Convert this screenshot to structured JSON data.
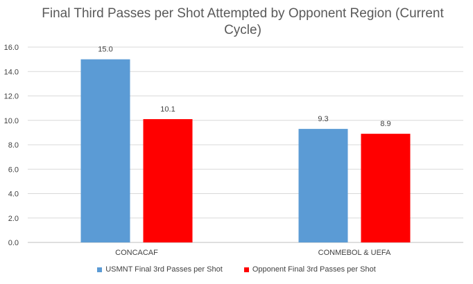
{
  "chart_data": {
    "type": "bar",
    "title": "Final Third Passes per Shot Attempted by Opponent Region (Current Cycle)",
    "categories": [
      "CONCACAF",
      "CONMEBOL & UEFA"
    ],
    "series": [
      {
        "name": "USMNT Final 3rd Passes per Shot",
        "color": "#5b9bd5",
        "values": [
          15.0,
          9.3
        ]
      },
      {
        "name": "Opponent Final 3rd Passes per Shot",
        "color": "#ff0000",
        "values": [
          10.1,
          8.9
        ]
      }
    ],
    "data_labels": [
      [
        "15.0",
        "9.3"
      ],
      [
        "10.1",
        "8.9"
      ]
    ],
    "ylim": [
      0,
      16
    ],
    "yticks": [
      "0.0",
      "2.0",
      "4.0",
      "6.0",
      "8.0",
      "10.0",
      "12.0",
      "14.0",
      "16.0"
    ],
    "grid": true,
    "legend_position": "bottom"
  }
}
